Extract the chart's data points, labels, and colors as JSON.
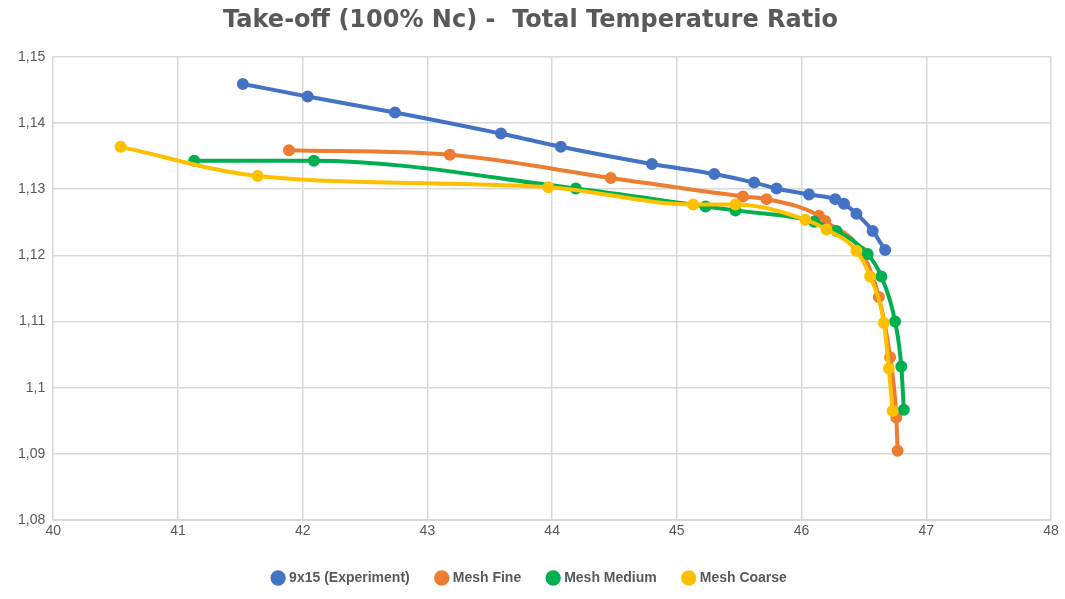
{
  "chart_data": {
    "type": "line",
    "title": "Take-off (100% Nc) -  Total Temperature Ratio",
    "xlim": [
      40,
      48
    ],
    "xticks": [
      40,
      41,
      42,
      43,
      44,
      45,
      46,
      47,
      48
    ],
    "ylim": [
      1.08,
      1.15
    ],
    "yticks": [
      {
        "value": 1.08,
        "label": "1,08"
      },
      {
        "value": 1.09,
        "label": "1,09"
      },
      {
        "value": 1.1,
        "label": "1,1"
      },
      {
        "value": 1.11,
        "label": "1,11"
      },
      {
        "value": 1.12,
        "label": "1,12"
      },
      {
        "value": 1.13,
        "label": "1,13"
      },
      {
        "value": 1.14,
        "label": "1,14"
      },
      {
        "value": 1.15,
        "label": "1,15"
      }
    ],
    "grid": true,
    "legend": "bottom",
    "marker": "circle",
    "line_style": "solid",
    "series": [
      {
        "name": "9x15 (Experiment)",
        "color": "#4472c4",
        "x": [
          41.52,
          42.04,
          42.74,
          43.59,
          44.07,
          44.8,
          45.3,
          45.62,
          45.8,
          46.06,
          46.27,
          46.34,
          46.44,
          46.57,
          46.67
        ],
        "values": [
          1.1459,
          1.144,
          1.1416,
          1.1384,
          1.1364,
          1.1338,
          1.1323,
          1.131,
          1.1301,
          1.1292,
          1.1285,
          1.1278,
          1.1263,
          1.1237,
          1.1208
        ]
      },
      {
        "name": "Mesh Fine",
        "color": "#ed7d31",
        "x": [
          41.89,
          43.18,
          44.47,
          45.53,
          45.72,
          46.14,
          46.19,
          46.48,
          46.62,
          46.71,
          46.76,
          46.77
        ],
        "values": [
          1.1359,
          1.1352,
          1.1317,
          1.1289,
          1.1285,
          1.126,
          1.1252,
          1.1206,
          1.1137,
          1.1046,
          1.0955,
          1.0905
        ]
      },
      {
        "name": "Mesh Medium",
        "color": "#00b050",
        "x": [
          41.13,
          42.09,
          44.19,
          45.23,
          45.47,
          46.1,
          46.28,
          46.53,
          46.64,
          46.75,
          46.8,
          46.82
        ],
        "values": [
          1.1343,
          1.1343,
          1.1301,
          1.1274,
          1.1268,
          1.1251,
          1.1237,
          1.1202,
          1.1168,
          1.11,
          1.1032,
          1.0967
        ]
      },
      {
        "name": "Mesh Coarse",
        "color": "#ffc000",
        "x": [
          40.54,
          41.64,
          43.97,
          45.13,
          45.47,
          46.03,
          46.2,
          46.44,
          46.55,
          46.66,
          46.7,
          46.73
        ],
        "values": [
          1.1364,
          1.132,
          1.1303,
          1.1277,
          1.1277,
          1.1254,
          1.1239,
          1.1207,
          1.1168,
          1.1098,
          1.1029,
          1.0965
        ]
      }
    ]
  }
}
